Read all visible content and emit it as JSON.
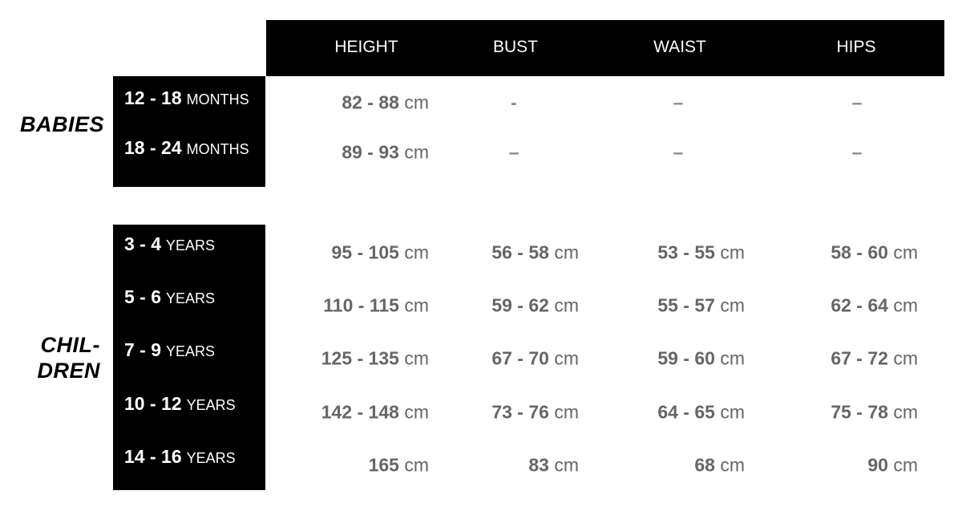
{
  "columns": [
    "HEIGHT",
    "BUST",
    "WAIST",
    "HIPS"
  ],
  "groups": [
    {
      "label": "BABIES",
      "label_lines": [
        "BABIES"
      ],
      "rows": [
        {
          "age": "12 - 18",
          "unit": "MONTHS",
          "values": [
            {
              "n": "82 - 88",
              "u": "cm"
            },
            {
              "n": "-",
              "u": ""
            },
            {
              "n": "–",
              "u": ""
            },
            {
              "n": "–",
              "u": ""
            }
          ]
        },
        {
          "age": "18 - 24",
          "unit": "MONTHS",
          "values": [
            {
              "n": "89 - 93",
              "u": "cm"
            },
            {
              "n": "–",
              "u": ""
            },
            {
              "n": "–",
              "u": ""
            },
            {
              "n": "–",
              "u": ""
            }
          ]
        }
      ]
    },
    {
      "label": "CHIL-DREN",
      "label_lines": [
        "CHIL-",
        "DREN"
      ],
      "rows": [
        {
          "age": "3 - 4",
          "unit": "YEARS",
          "values": [
            {
              "n": "95 - 105",
              "u": "cm"
            },
            {
              "n": "56 - 58",
              "u": "cm"
            },
            {
              "n": "53 - 55",
              "u": "cm"
            },
            {
              "n": "58 - 60",
              "u": "cm"
            }
          ]
        },
        {
          "age": "5 - 6",
          "unit": "YEARS",
          "values": [
            {
              "n": "110 - 115",
              "u": "cm"
            },
            {
              "n": "59 - 62",
              "u": "cm"
            },
            {
              "n": "55 - 57",
              "u": "cm"
            },
            {
              "n": "62 - 64",
              "u": "cm"
            }
          ]
        },
        {
          "age": "7 - 9",
          "unit": "YEARS",
          "values": [
            {
              "n": "125 - 135",
              "u": "cm"
            },
            {
              "n": "67 - 70",
              "u": "cm"
            },
            {
              "n": "59 - 60",
              "u": "cm"
            },
            {
              "n": "67 - 72",
              "u": "cm"
            }
          ]
        },
        {
          "age": "10 - 12",
          "unit": "YEARS",
          "values": [
            {
              "n": "142 - 148",
              "u": "cm"
            },
            {
              "n": "73 - 76",
              "u": "cm"
            },
            {
              "n": "64 - 65",
              "u": "cm"
            },
            {
              "n": "75 - 78",
              "u": "cm"
            }
          ]
        },
        {
          "age": "14 - 16",
          "unit": "YEARS",
          "values": [
            {
              "n": "165",
              "u": "cm"
            },
            {
              "n": "83",
              "u": "cm"
            },
            {
              "n": "68",
              "u": "cm"
            },
            {
              "n": "90",
              "u": "cm"
            }
          ]
        }
      ]
    }
  ]
}
